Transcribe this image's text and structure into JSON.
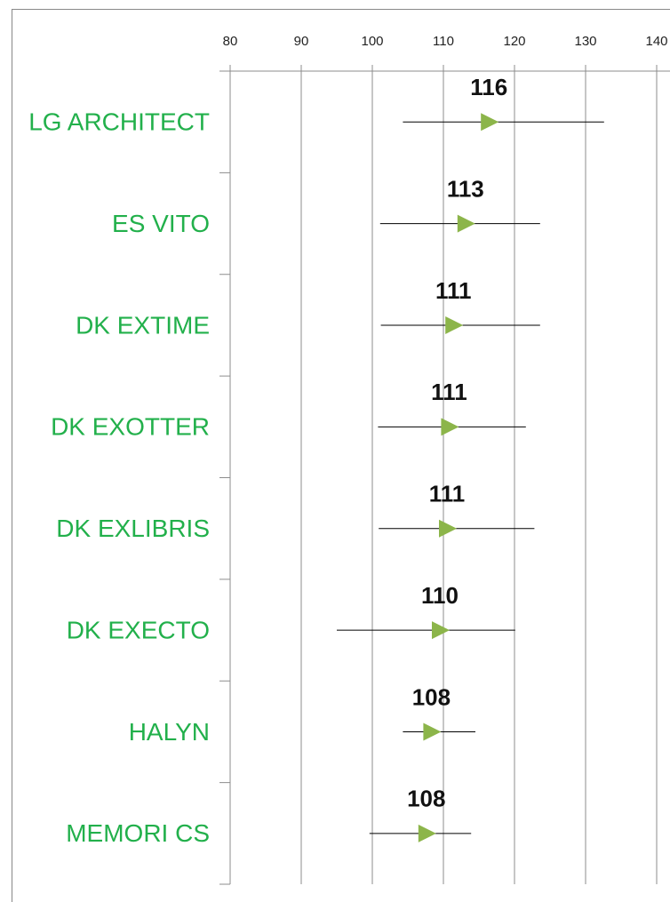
{
  "chart_data": {
    "type": "errorbar",
    "categories": [
      "LG ARCHITECT",
      "ES VITO",
      "DK EXTIME",
      "DK EXOTTER",
      "DK EXLIBRIS",
      "DK EXECTO",
      "HALYN",
      "MEMORI CS"
    ],
    "values": [
      116.4,
      113.1,
      111.4,
      110.8,
      110.5,
      109.5,
      108.3,
      107.6
    ],
    "value_labels": [
      "116",
      "113",
      "111",
      "111",
      "111",
      "110",
      "108",
      "108"
    ],
    "low": [
      104.3,
      101.1,
      101.2,
      100.8,
      100.9,
      95,
      104.3,
      99.6
    ],
    "high": [
      132.6,
      123.6,
      123.6,
      121.6,
      122.8,
      120.1,
      114.5,
      113.9
    ],
    "color": "#8cb54a",
    "label_color": "#22b04b",
    "xlim": [
      80,
      140
    ],
    "xticks": [
      80,
      90,
      100,
      110,
      120,
      130,
      140
    ],
    "grid": true
  }
}
